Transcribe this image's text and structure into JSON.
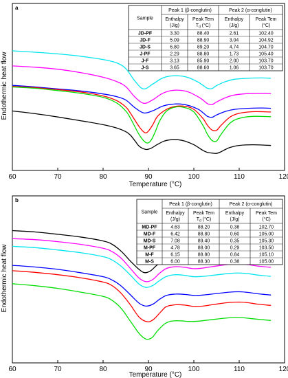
{
  "chart_data": [
    {
      "type": "line",
      "panel_label": "a",
      "xlabel": "Temperature (°C)",
      "ylabel": "Endothermic heat flow",
      "xlim": [
        60,
        120
      ],
      "x_ticks": [
        "60",
        "70",
        "80",
        "90",
        "100",
        "110",
        "120"
      ],
      "grid": false,
      "series": [
        {
          "color": "#00e5ee",
          "x": [
            60,
            65,
            70,
            75,
            80,
            83,
            85,
            87,
            88.9,
            91,
            93,
            95,
            97,
            99,
            101,
            102,
            103,
            104,
            105,
            107,
            109,
            112,
            115,
            117
          ],
          "y": [
            85.8,
            85.4,
            84.9,
            84.2,
            83.2,
            82.2,
            80.5,
            76.8,
            74.4,
            75.9,
            77.6,
            78.3,
            78.3,
            77.7,
            76.4,
            75.5,
            74.6,
            74.5,
            75.4,
            76.6,
            77.3,
            77.6,
            77.7,
            77.6
          ]
        },
        {
          "color": "#ff00ff",
          "x": [
            60,
            65,
            70,
            75,
            80,
            83,
            85,
            87,
            89,
            91,
            93,
            95,
            97,
            99,
            101,
            102,
            103,
            104,
            105,
            107,
            109,
            112,
            115,
            117
          ],
          "y": [
            81.3,
            80.9,
            80.3,
            79.3,
            77.9,
            76.6,
            75.1,
            72.0,
            70.1,
            71.2,
            73.0,
            73.9,
            74.0,
            73.4,
            72.0,
            71.1,
            70.0,
            69.7,
            70.5,
            71.8,
            72.6,
            73.0,
            73.1,
            73.0
          ]
        },
        {
          "color": "#0000ff",
          "x": [
            60,
            65,
            70,
            75,
            80,
            83,
            85,
            87,
            89,
            91,
            93,
            95,
            97,
            99,
            101,
            102,
            103,
            104,
            105,
            107,
            109,
            112,
            115,
            117
          ],
          "y": [
            75.5,
            75.0,
            74.4,
            73.8,
            72.9,
            72.1,
            71.1,
            68.8,
            67.2,
            67.9,
            69.2,
            69.8,
            69.9,
            69.4,
            68.3,
            67.3,
            66.2,
            65.9,
            66.6,
            67.7,
            68.3,
            68.6,
            68.7,
            68.6
          ]
        },
        {
          "color": "#ff0000",
          "x": [
            60,
            65,
            70,
            75,
            80,
            83,
            85,
            86,
            88,
            89.2,
            90,
            91,
            92,
            94,
            96,
            98,
            100,
            102,
            103,
            104,
            105,
            106,
            108,
            110,
            113,
            117
          ],
          "y": [
            75.2,
            74.8,
            74.2,
            73.5,
            72.3,
            70.9,
            69.0,
            67.2,
            63.0,
            61.3,
            61.8,
            63.8,
            66.2,
            68.3,
            69.2,
            69.2,
            68.3,
            65.6,
            63.5,
            62.1,
            62.0,
            63.5,
            66.0,
            67.1,
            67.6,
            67.5
          ]
        },
        {
          "color": "#00dd00",
          "x": [
            60,
            65,
            70,
            75,
            80,
            83,
            85,
            86,
            88,
            89.5,
            90.5,
            91.5,
            92.5,
            94,
            96,
            98,
            100,
            102,
            103,
            104,
            105,
            106,
            108,
            110,
            113,
            117
          ],
          "y": [
            75.0,
            74.6,
            73.9,
            73.1,
            71.9,
            70.2,
            67.8,
            65.7,
            60.6,
            58.3,
            58.9,
            61.6,
            64.9,
            67.8,
            69.0,
            68.8,
            67.5,
            63.5,
            60.8,
            59.0,
            58.8,
            60.8,
            64.2,
            65.6,
            66.2,
            66.1
          ]
        },
        {
          "color": "#000000",
          "x": [
            60,
            65,
            70,
            75,
            80,
            83,
            85,
            86,
            87,
            88,
            89.4,
            90.5,
            92,
            93.5,
            95,
            96.5,
            98,
            100,
            102,
            103,
            104,
            105,
            106,
            107,
            108,
            110,
            113,
            117
          ],
          "y": [
            67.8,
            67.0,
            66.0,
            64.9,
            63.7,
            62.7,
            61.6,
            60.6,
            58.9,
            57.2,
            56.3,
            56.6,
            57.8,
            58.8,
            59.2,
            59.2,
            58.8,
            57.7,
            56.0,
            55.4,
            55.2,
            55.1,
            55.6,
            56.3,
            56.9,
            57.5,
            57.7,
            57.5
          ]
        }
      ],
      "table": {
        "columns": [
          "Sample",
          "Peak 1 (β-conglutin)",
          "Peak 2 (α-conglutin)"
        ],
        "subcolumns": [
          "Enthalpy (J/g)",
          "Peak Tem T_d (°C)",
          "Enthalpy (J/g)",
          "Peak Tem (°C)"
        ],
        "rows": [
          [
            "JD-PF",
            "3.30",
            "88.40",
            "2.61",
            "102.40"
          ],
          [
            "JD-F",
            "5.09",
            "88.90",
            "3.04",
            "104.92"
          ],
          [
            "JD-S",
            "6.80",
            "89.20",
            "4.74",
            "104.70"
          ],
          [
            "J-PF",
            "2.29",
            "88.80",
            "1.73",
            "105.40"
          ],
          [
            "J-F",
            "3.13",
            "85.90",
            "2.00",
            "103.70"
          ],
          [
            "J-S",
            "3.65",
            "88.60",
            "1.06",
            "103.70"
          ]
        ]
      }
    },
    {
      "type": "line",
      "panel_label": "b",
      "xlabel": "Temperature (°C)",
      "ylabel": "Endothermic heat flow",
      "xlim": [
        60,
        120
      ],
      "x_ticks": [
        "60",
        "70",
        "80",
        "90",
        "100",
        "110",
        "120"
      ],
      "grid": false,
      "series": [
        {
          "color": "#000000",
          "x": [
            60,
            65,
            70,
            75,
            80,
            82,
            84,
            86,
            88,
            89.2,
            90.5,
            92,
            94,
            96,
            98,
            100,
            102,
            104,
            106,
            108,
            110,
            112,
            114,
            117
          ],
          "y": [
            79.6,
            79.2,
            78.5,
            77.7,
            76.5,
            75.5,
            73.4,
            70.5,
            67.9,
            67.0,
            67.6,
            69.4,
            71.0,
            71.7,
            71.6,
            71.3,
            71.4,
            71.6,
            71.9,
            72.2,
            72.3,
            72.2,
            71.9,
            71.5
          ]
        },
        {
          "color": "#ff00ff",
          "x": [
            60,
            65,
            70,
            75,
            80,
            82,
            84,
            86,
            88,
            89.6,
            91,
            92.5,
            94,
            96,
            98,
            100,
            102,
            104,
            106,
            108,
            110,
            112,
            114,
            117
          ],
          "y": [
            77.2,
            76.9,
            76.3,
            75.5,
            74.3,
            73.3,
            71.3,
            68.3,
            65.3,
            64.3,
            65.0,
            66.9,
            68.3,
            68.8,
            68.6,
            68.2,
            68.4,
            68.8,
            69.2,
            69.5,
            69.6,
            69.4,
            69.0,
            68.6
          ]
        },
        {
          "color": "#00e5ee",
          "x": [
            60,
            65,
            70,
            75,
            80,
            82,
            84,
            86,
            88,
            89.5,
            91,
            92.5,
            94,
            96,
            98,
            100,
            102,
            104,
            106,
            108,
            110,
            112,
            114,
            117
          ],
          "y": [
            74.9,
            74.5,
            73.8,
            73.0,
            71.8,
            70.8,
            68.9,
            66.3,
            63.5,
            62.6,
            63.2,
            64.7,
            65.9,
            66.4,
            66.2,
            65.8,
            65.9,
            66.2,
            66.5,
            66.8,
            66.9,
            66.7,
            66.3,
            65.9
          ]
        },
        {
          "color": "#0000ff",
          "x": [
            60,
            65,
            70,
            75,
            80,
            82,
            84,
            86,
            88,
            89.5,
            91,
            92.5,
            94,
            96,
            98,
            100,
            102,
            104,
            106,
            108,
            110,
            112,
            114,
            117
          ],
          "y": [
            69.2,
            68.7,
            68.0,
            67.0,
            65.8,
            64.8,
            63.0,
            60.4,
            57.8,
            57.0,
            57.6,
            59.1,
            60.2,
            60.6,
            60.5,
            60.2,
            60.3,
            60.6,
            60.9,
            61.2,
            61.3,
            61.1,
            60.7,
            60.3
          ]
        },
        {
          "color": "#ff0000",
          "x": [
            60,
            65,
            70,
            75,
            80,
            82,
            84,
            86,
            88,
            89.8,
            91.2,
            92.8,
            94,
            96,
            98,
            100,
            102,
            104,
            106,
            108,
            110,
            112,
            114,
            117
          ],
          "y": [
            67.6,
            67.1,
            66.4,
            65.5,
            64.2,
            63.1,
            60.8,
            57.4,
            53.6,
            52.3,
            53.1,
            55.4,
            56.9,
            57.4,
            57.3,
            56.9,
            57.0,
            57.4,
            57.8,
            58.1,
            58.2,
            58.0,
            57.6,
            57.2
          ]
        },
        {
          "color": "#00dd00",
          "x": [
            60,
            65,
            70,
            75,
            80,
            82,
            84,
            86,
            88,
            89.5,
            90.8,
            92,
            93.5,
            95,
            97,
            99,
            101,
            103,
            105,
            107,
            109,
            111,
            113,
            117
          ],
          "y": [
            63.7,
            63.1,
            62.3,
            61.2,
            59.9,
            58.7,
            56.3,
            52.5,
            48.7,
            47.1,
            47.6,
            49.6,
            51.6,
            52.5,
            52.6,
            52.4,
            52.5,
            52.8,
            53.1,
            53.4,
            53.6,
            53.5,
            53.2,
            52.7
          ]
        }
      ],
      "table": {
        "columns": [
          "Sample",
          "Peak 1 (β-conglutin)",
          "Peak 2 (α-conglutin)"
        ],
        "subcolumns": [
          "Enthalpy (J/g)",
          "Peak Tem T_d (°C)",
          "Enthalpy (J/g)",
          "Peak Tem (°C)"
        ],
        "rows": [
          [
            "MD-PF",
            "4.63",
            "88.20",
            "0.38",
            "102.70"
          ],
          [
            "MD-F",
            "6.42",
            "88.80",
            "0.60",
            "105.00"
          ],
          [
            "MD-S",
            "7.08",
            "89.40",
            "0.35",
            "105.30"
          ],
          [
            "M-PF",
            "4.78",
            "88.00",
            "0.29",
            "103.50"
          ],
          [
            "M-F",
            "6.15",
            "88.80",
            "0.84",
            "105.10"
          ],
          [
            "M-S",
            "6.00",
            "88.30",
            "0.38",
            "105.00"
          ]
        ]
      }
    }
  ]
}
